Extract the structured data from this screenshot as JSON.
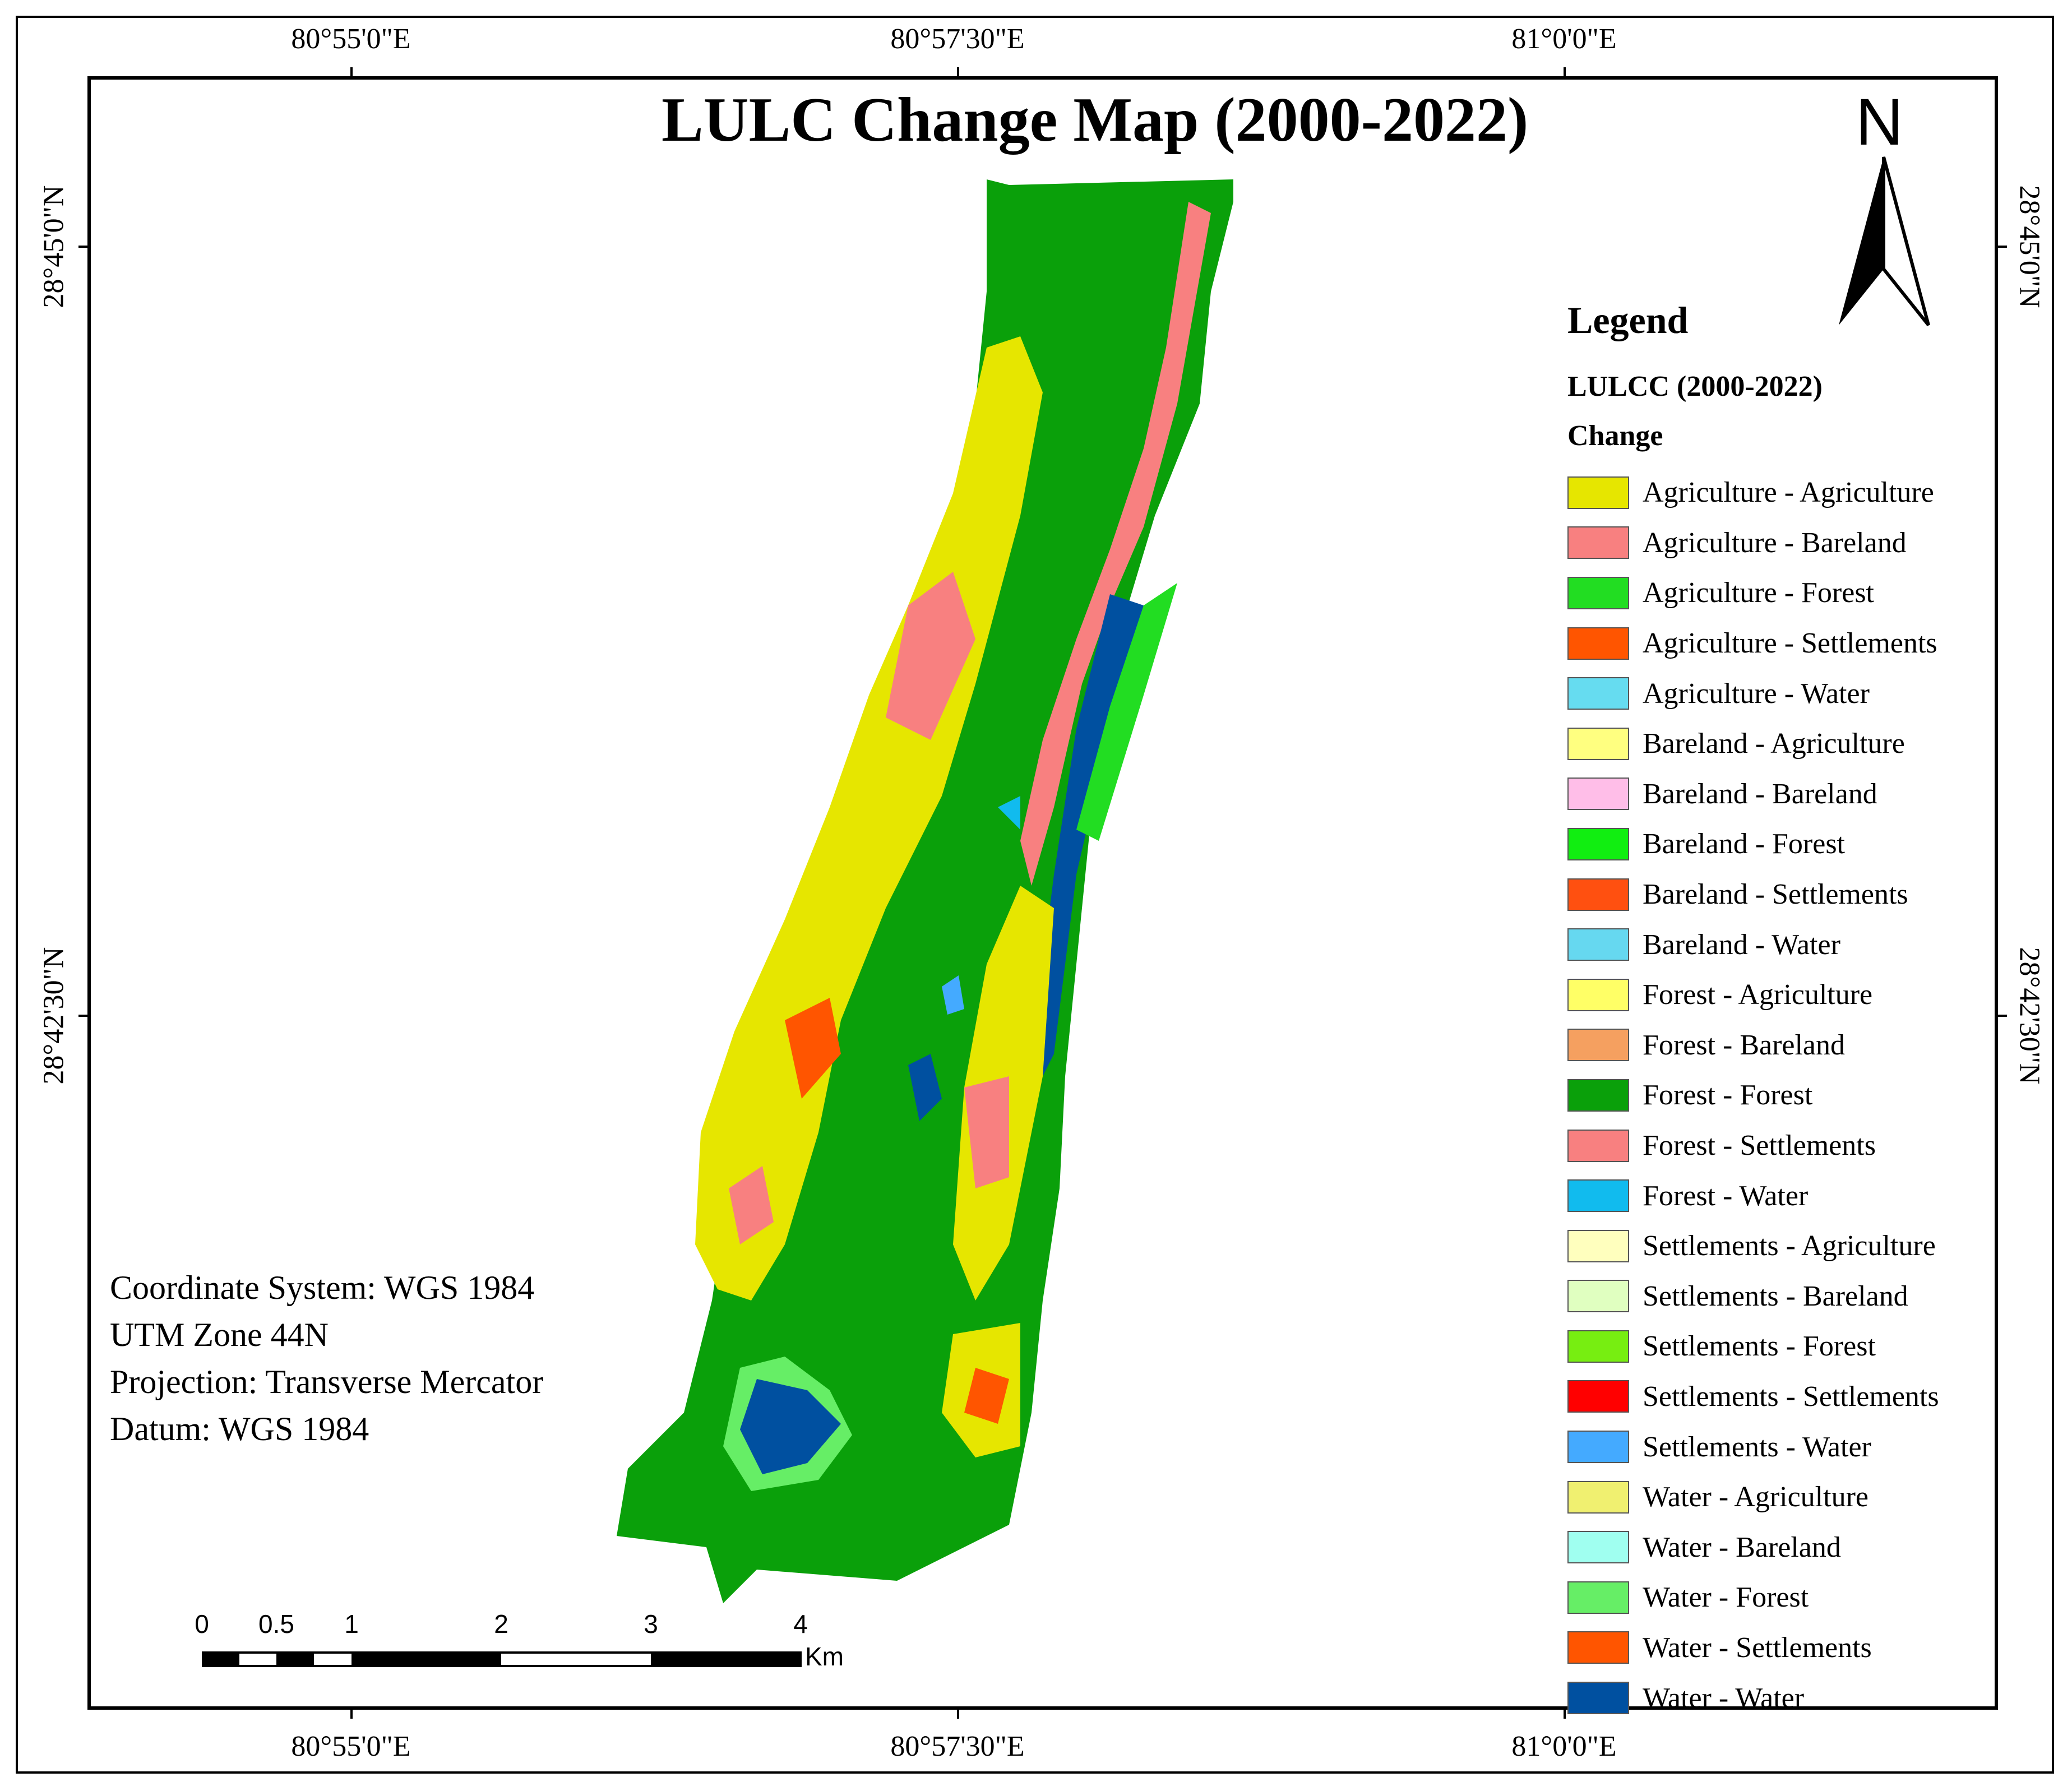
{
  "title": "LULC Change Map (2000-2022)",
  "coordinates": {
    "top": [
      "80°55'0\"E",
      "80°57'30\"E",
      "81°0'0\"E"
    ],
    "bottom": [
      "80°55'0\"E",
      "80°57'30\"E",
      "81°0'0\"E"
    ],
    "left": [
      "28°45'0\"N",
      "28°42'30\"N"
    ],
    "right": [
      "28°45'0\"N",
      "28°42'30\"N"
    ]
  },
  "north_arrow": {
    "letter": "N"
  },
  "legend": {
    "title": "Legend",
    "layer": "LULCC (2000-2022)",
    "field": "Change",
    "items": [
      {
        "label": "Agriculture  -  Agriculture",
        "color": "#e6e600"
      },
      {
        "label": "Agriculture  -  Bareland",
        "color": "#f88080"
      },
      {
        "label": "Agriculture  -  Forest",
        "color": "#22dd22"
      },
      {
        "label": "Agriculture  -  Settlements",
        "color": "#ff5500"
      },
      {
        "label": "Agriculture  -  Water",
        "color": "#66dcf0"
      },
      {
        "label": "Bareland  -  Agriculture",
        "color": "#ffff80"
      },
      {
        "label": "Bareland  -  Bareland",
        "color": "#ffbee8"
      },
      {
        "label": "Bareland  -  Forest",
        "color": "#11ee11"
      },
      {
        "label": "Bareland  -  Settlements",
        "color": "#ff5010"
      },
      {
        "label": "Bareland  -  Water",
        "color": "#66d8f0"
      },
      {
        "label": "Forest  -  Agriculture",
        "color": "#ffff66"
      },
      {
        "label": "Forest  -  Bareland",
        "color": "#f5a060"
      },
      {
        "label": "Forest  -  Forest",
        "color": "#0aa00a"
      },
      {
        "label": "Forest  -  Settlements",
        "color": "#f88080"
      },
      {
        "label": "Forest  -  Water",
        "color": "#11bbee"
      },
      {
        "label": "Settlements  -  Agriculture",
        "color": "#ffffbe"
      },
      {
        "label": "Settlements  -  Bareland",
        "color": "#e0ffc0"
      },
      {
        "label": "Settlements  -  Forest",
        "color": "#77ee11"
      },
      {
        "label": "Settlements  -  Settlements",
        "color": "#ff0000"
      },
      {
        "label": "Settlements  -  Water",
        "color": "#44aaff"
      },
      {
        "label": "Water  -  Agriculture",
        "color": "#f0f070"
      },
      {
        "label": "Water  -  Bareland",
        "color": "#a0fff0"
      },
      {
        "label": "Water  -  Forest",
        "color": "#66ee66"
      },
      {
        "label": "Water  -  Settlements",
        "color": "#ff5500"
      },
      {
        "label": "Water  -  Water",
        "color": "#0050a0"
      }
    ]
  },
  "info": {
    "line1": "Coordinate System: WGS 1984",
    "line2": "UTM Zone 44N",
    "line3": "Projection: Transverse Mercator",
    "line4": "Datum: WGS 1984"
  },
  "scale_bar": {
    "labels": [
      "0",
      "0.5",
      "1",
      "2",
      "3",
      "4"
    ],
    "unit": "Km"
  }
}
